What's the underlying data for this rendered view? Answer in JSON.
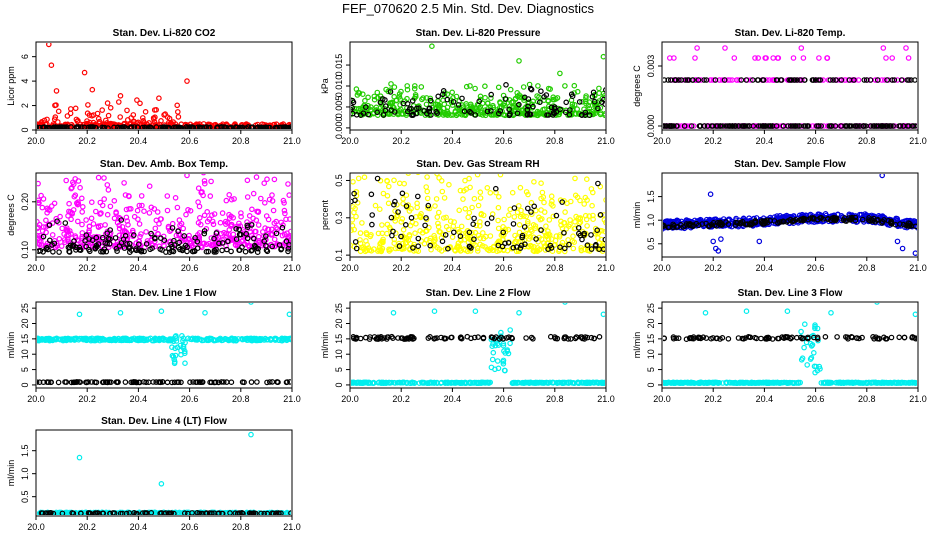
{
  "title": "FEF_070620  2.5 Min. Std. Dev. Diagnostics",
  "colors": {
    "red": "#ff0000",
    "green": "#22cc00",
    "magenta": "#ff00ff",
    "yellow": "#ffff00",
    "blue": "#0000dd",
    "cyan": "#00eeee",
    "black": "#000000"
  },
  "chart_data": [
    {
      "type": "scatter",
      "title": "Stan. Dev. Li-820 CO2",
      "ylabel": "Licor ppm",
      "xlim": [
        20.0,
        21.0
      ],
      "ylim": [
        0,
        7.2
      ],
      "xticks": [
        "20.0",
        "20.2",
        "20.4",
        "20.6",
        "20.8",
        "21.0"
      ],
      "yticks": [
        "0",
        "2",
        "4",
        "6"
      ],
      "series": [
        {
          "name": "primary",
          "color": "red",
          "n": 380,
          "x0": 20.0,
          "x1": 21.0,
          "base": 0.3,
          "spread": 0.4,
          "bursts": [
            {
              "x0": 20.02,
              "x1": 20.58,
              "ymin": 0.5,
              "ymax": 2.6
            }
          ],
          "outliers": [
            [
              20.05,
              7.0
            ],
            [
              20.06,
              5.3
            ],
            [
              20.08,
              3.2
            ],
            [
              20.19,
              4.7
            ],
            [
              20.22,
              3.3
            ],
            [
              20.33,
              2.8
            ],
            [
              20.48,
              2.6
            ],
            [
              20.59,
              4.0
            ]
          ]
        },
        {
          "name": "secondary",
          "color": "black",
          "n": 160,
          "x0": 20.0,
          "x1": 21.0,
          "base": 0.2,
          "spread": 0.1
        }
      ]
    },
    {
      "type": "scatter",
      "title": "Stan. Dev. Li-820 Pressure",
      "ylabel": "kPa",
      "xlim": [
        20.0,
        21.0
      ],
      "ylim": [
        -0.0005,
        0.0205
      ],
      "xticks": [
        "20.0",
        "20.2",
        "20.4",
        "20.6",
        "20.8",
        "21.0"
      ],
      "yticks": [
        "0.000",
        "0.005",
        "0.010",
        "0.015"
      ],
      "series": [
        {
          "name": "primary",
          "color": "green",
          "n": 450,
          "x0": 20.0,
          "x1": 21.0,
          "base": 0.003,
          "spread": 0.005,
          "outliers": [
            [
              20.16,
              0.0105
            ],
            [
              20.32,
              0.0195
            ],
            [
              20.66,
              0.016
            ],
            [
              20.82,
              0.013
            ],
            [
              20.99,
              0.017
            ]
          ]
        },
        {
          "name": "secondary",
          "color": "black",
          "n": 110,
          "x0": 20.0,
          "x1": 21.0,
          "base": 0.003,
          "spread": 0.005
        }
      ]
    },
    {
      "type": "scatter",
      "title": "Stan. Dev. Li-820 Temp.",
      "ylabel": "degrees C",
      "xlim": [
        20.0,
        21.0
      ],
      "ylim": [
        -0.0002,
        0.0042
      ],
      "xticks": [
        "20.0",
        "20.2",
        "20.4",
        "20.6",
        "20.8",
        "21.0"
      ],
      "yticks": [
        "0.000",
        "0.003"
      ],
      "series": [
        {
          "name": "primary",
          "color": "magenta",
          "n": 260,
          "x0": 20.0,
          "x1": 21.0,
          "levels": [
            0.0,
            0.0011,
            0.0023,
            0.0034,
            0.0039
          ],
          "weights": [
            0.6,
            0.0,
            0.3,
            0.08,
            0.02
          ]
        },
        {
          "name": "secondary",
          "color": "black",
          "n": 200,
          "x0": 20.0,
          "x1": 21.0,
          "levels": [
            0.0,
            0.0023
          ],
          "weights": [
            0.7,
            0.3
          ]
        }
      ]
    },
    {
      "type": "scatter",
      "title": "Stan. Dev. Amb. Box Temp.",
      "ylabel": "degrees C",
      "xlim": [
        20.0,
        21.0
      ],
      "ylim": [
        0.085,
        0.26
      ],
      "xticks": [
        "20.0",
        "20.2",
        "20.4",
        "20.6",
        "20.8",
        "21.0"
      ],
      "yticks": [
        "0.10",
        "0.20"
      ],
      "series": [
        {
          "name": "primary",
          "color": "magenta",
          "n": 520,
          "x0": 20.0,
          "x1": 21.0,
          "base": 0.105,
          "spread": 0.11,
          "outliers": [
            [
              20.59,
              0.255
            ]
          ]
        },
        {
          "name": "secondary",
          "color": "black",
          "n": 170,
          "x0": 20.0,
          "x1": 21.0,
          "base": 0.095,
          "spread": 0.045
        }
      ]
    },
    {
      "type": "scatter",
      "title": "Stan. Dev. Gas Stream RH",
      "ylabel": "percent",
      "xlim": [
        20.0,
        21.0
      ],
      "ylim": [
        0.09,
        0.54
      ],
      "xticks": [
        "20.0",
        "20.2",
        "20.4",
        "20.6",
        "20.8",
        "21.0"
      ],
      "yticks": [
        "0.1",
        "0.3",
        "0.5"
      ],
      "series": [
        {
          "name": "primary",
          "color": "yellow",
          "n": 520,
          "x0": 20.0,
          "x1": 21.0,
          "base": 0.12,
          "spread": 0.33
        },
        {
          "name": "secondary",
          "color": "black",
          "n": 90,
          "x0": 20.0,
          "x1": 21.0,
          "base": 0.13,
          "spread": 0.3
        }
      ]
    },
    {
      "type": "scatter",
      "title": "Stan. Dev. Sample Flow",
      "ylabel": "ml/min",
      "xlim": [
        20.0,
        21.0
      ],
      "ylim": [
        0.22,
        2.0
      ],
      "xticks": [
        "20.0",
        "20.2",
        "20.4",
        "20.6",
        "20.8",
        "21.0"
      ],
      "yticks": [
        "0.5",
        "1.0",
        "1.5"
      ],
      "series": [
        {
          "name": "primary",
          "color": "blue",
          "n": 480,
          "x0": 20.0,
          "x1": 21.0,
          "trend": [
            [
              20.0,
              0.9
            ],
            [
              20.3,
              0.95
            ],
            [
              20.6,
              1.05
            ],
            [
              20.8,
              1.05
            ],
            [
              21.0,
              0.9
            ]
          ],
          "spread": 0.18,
          "outliers": [
            [
              20.19,
              1.55
            ],
            [
              20.2,
              0.55
            ],
            [
              20.21,
              0.4
            ],
            [
              20.22,
              0.35
            ],
            [
              20.23,
              0.6
            ],
            [
              20.38,
              0.55
            ],
            [
              20.86,
              1.95
            ],
            [
              20.92,
              0.55
            ],
            [
              20.94,
              0.4
            ],
            [
              20.99,
              0.3
            ]
          ]
        },
        {
          "name": "secondary",
          "color": "black",
          "n": 160,
          "x0": 20.0,
          "x1": 21.0,
          "trend": [
            [
              20.0,
              0.88
            ],
            [
              20.3,
              0.93
            ],
            [
              20.6,
              1.02
            ],
            [
              20.8,
              1.02
            ],
            [
              21.0,
              0.88
            ]
          ],
          "spread": 0.08
        }
      ]
    },
    {
      "type": "scatter",
      "title": "Stan. Dev. Line 1 Flow",
      "ylabel": "ml/min",
      "xlim": [
        20.0,
        21.0
      ],
      "ylim": [
        -1,
        27
      ],
      "xticks": [
        "20.0",
        "20.2",
        "20.4",
        "20.6",
        "20.8",
        "21.0"
      ],
      "yticks": [
        "0",
        "5",
        "10",
        "15",
        "20",
        "25"
      ],
      "series": [
        {
          "name": "primary",
          "color": "cyan",
          "n": 330,
          "x0": 20.0,
          "x1": 21.0,
          "base": 14.8,
          "spread": 0.8,
          "dip": {
            "x": 20.56,
            "w": 0.03,
            "ymin": 7,
            "ymax": 17
          },
          "outliers": [
            [
              20.17,
              23
            ],
            [
              20.33,
              23.5
            ],
            [
              20.49,
              24
            ],
            [
              20.66,
              23.5
            ],
            [
              20.84,
              27
            ],
            [
              20.99,
              23
            ]
          ]
        },
        {
          "name": "secondary",
          "color": "black",
          "n": 95,
          "x0": 20.0,
          "x1": 21.0,
          "base": 0.9,
          "spread": 0.2
        }
      ]
    },
    {
      "type": "scatter",
      "title": "Stan. Dev. Line 2 Flow",
      "ylabel": "ml/min",
      "xlim": [
        20.0,
        21.0
      ],
      "ylim": [
        -1,
        27
      ],
      "xticks": [
        "20.0",
        "20.2",
        "20.4",
        "20.6",
        "20.8",
        "21.0"
      ],
      "yticks": [
        "0",
        "5",
        "10",
        "15",
        "20",
        "25"
      ],
      "series": [
        {
          "name": "primary",
          "color": "cyan",
          "n": 360,
          "x0": 20.0,
          "x1": 21.0,
          "base": 0.7,
          "spread": 0.3,
          "dip": {
            "x": 20.59,
            "w": 0.04,
            "ymin": 4,
            "ymax": 18
          },
          "outliers": [
            [
              20.17,
              23.5
            ],
            [
              20.33,
              24
            ],
            [
              20.49,
              24
            ],
            [
              20.66,
              23.5
            ],
            [
              20.84,
              27
            ],
            [
              20.99,
              23
            ]
          ]
        },
        {
          "name": "secondary",
          "color": "black",
          "n": 95,
          "x0": 20.0,
          "x1": 21.0,
          "base": 15.3,
          "spread": 0.8
        }
      ]
    },
    {
      "type": "scatter",
      "title": "Stan. Dev. Line 3 Flow",
      "ylabel": "ml/min",
      "xlim": [
        20.0,
        21.0
      ],
      "ylim": [
        -1,
        27
      ],
      "xticks": [
        "20.0",
        "20.2",
        "20.4",
        "20.6",
        "20.8",
        "21.0"
      ],
      "yticks": [
        "0",
        "5",
        "10",
        "15",
        "20",
        "25"
      ],
      "series": [
        {
          "name": "primary",
          "color": "cyan",
          "n": 360,
          "x0": 20.0,
          "x1": 21.0,
          "base": 0.7,
          "spread": 0.3,
          "dip": {
            "x": 20.58,
            "w": 0.04,
            "ymin": 4,
            "ymax": 20
          },
          "outliers": [
            [
              20.17,
              23.5
            ],
            [
              20.33,
              24
            ],
            [
              20.49,
              24
            ],
            [
              20.66,
              23.5
            ],
            [
              20.84,
              27
            ],
            [
              20.99,
              23
            ]
          ]
        },
        {
          "name": "secondary",
          "color": "black",
          "n": 95,
          "x0": 20.0,
          "x1": 21.0,
          "base": 15.3,
          "spread": 0.8
        }
      ]
    },
    {
      "type": "scatter",
      "title": "Stan. Dev. Line 4 (LT) Flow",
      "ylabel": "ml/min",
      "xlim": [
        20.0,
        21.0
      ],
      "ylim": [
        0.08,
        1.95
      ],
      "xticks": [
        "20.0",
        "20.2",
        "20.4",
        "20.6",
        "20.8",
        "21.0"
      ],
      "yticks": [
        "0.5",
        "1.0",
        "1.5"
      ],
      "series": [
        {
          "name": "primary",
          "color": "cyan",
          "n": 330,
          "x0": 20.0,
          "x1": 21.0,
          "base": 0.14,
          "spread": 0.04,
          "outliers": [
            [
              20.17,
              1.35
            ],
            [
              20.49,
              0.78
            ],
            [
              20.84,
              1.85
            ]
          ]
        },
        {
          "name": "secondary",
          "color": "black",
          "n": 95,
          "x0": 20.0,
          "x1": 21.0,
          "base": 0.14,
          "spread": 0.02
        }
      ]
    }
  ]
}
